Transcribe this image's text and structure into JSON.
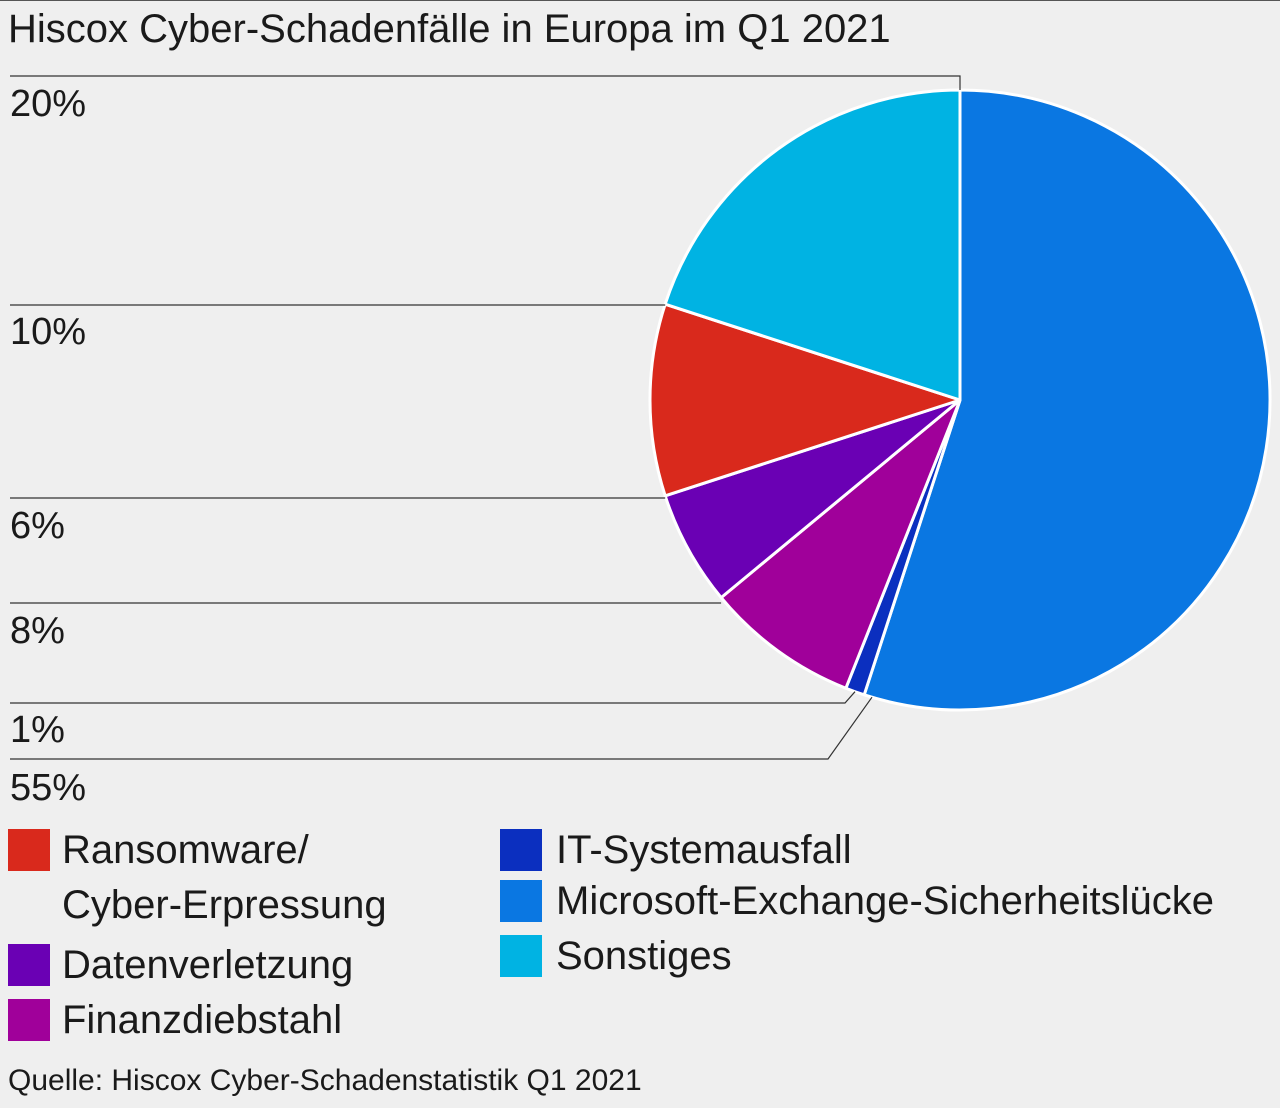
{
  "title": "Hiscox Cyber-Schadenfälle in Europa im Q1 2021",
  "source": "Quelle: Hiscox Cyber-Schadenstatistik Q1 2021",
  "chart_data": {
    "type": "pie",
    "title": "Hiscox Cyber-Schadenfälle in Europa im Q1 2021",
    "legend_position": "bottom",
    "slices": [
      {
        "name": "Microsoft-Exchange-Sicherheitslücke",
        "value": 55,
        "label": "55%",
        "color": "#0a77e2"
      },
      {
        "name": "IT-Systemausfall",
        "value": 1,
        "label": "1%",
        "color": "#0b2fbf"
      },
      {
        "name": "Finanzdiebstahl",
        "value": 8,
        "label": "8%",
        "color": "#a0009a"
      },
      {
        "name": "Datenverletzung",
        "value": 6,
        "label": "6%",
        "color": "#6a00b4"
      },
      {
        "name": "Ransomware/ Cyber-Erpressung",
        "value": 10,
        "label": "10%",
        "color": "#d9291c"
      },
      {
        "name": "Sonstiges",
        "value": 20,
        "label": "20%",
        "color": "#00b3e3"
      }
    ]
  },
  "legend": [
    {
      "label_line1": "Ransomware/",
      "label_line2": "Cyber-Erpressung",
      "color": "#d9291c"
    },
    {
      "label": "Datenverletzung",
      "color": "#6a00b4"
    },
    {
      "label": "Finanzdiebstahl",
      "color": "#a0009a"
    },
    {
      "label": "IT-Systemausfall",
      "color": "#0b2fbf"
    },
    {
      "label": "Microsoft-Exchange-Sicherheitslücke",
      "color": "#0a77e2"
    },
    {
      "label": "Sonstiges",
      "color": "#00b3e3"
    }
  ]
}
